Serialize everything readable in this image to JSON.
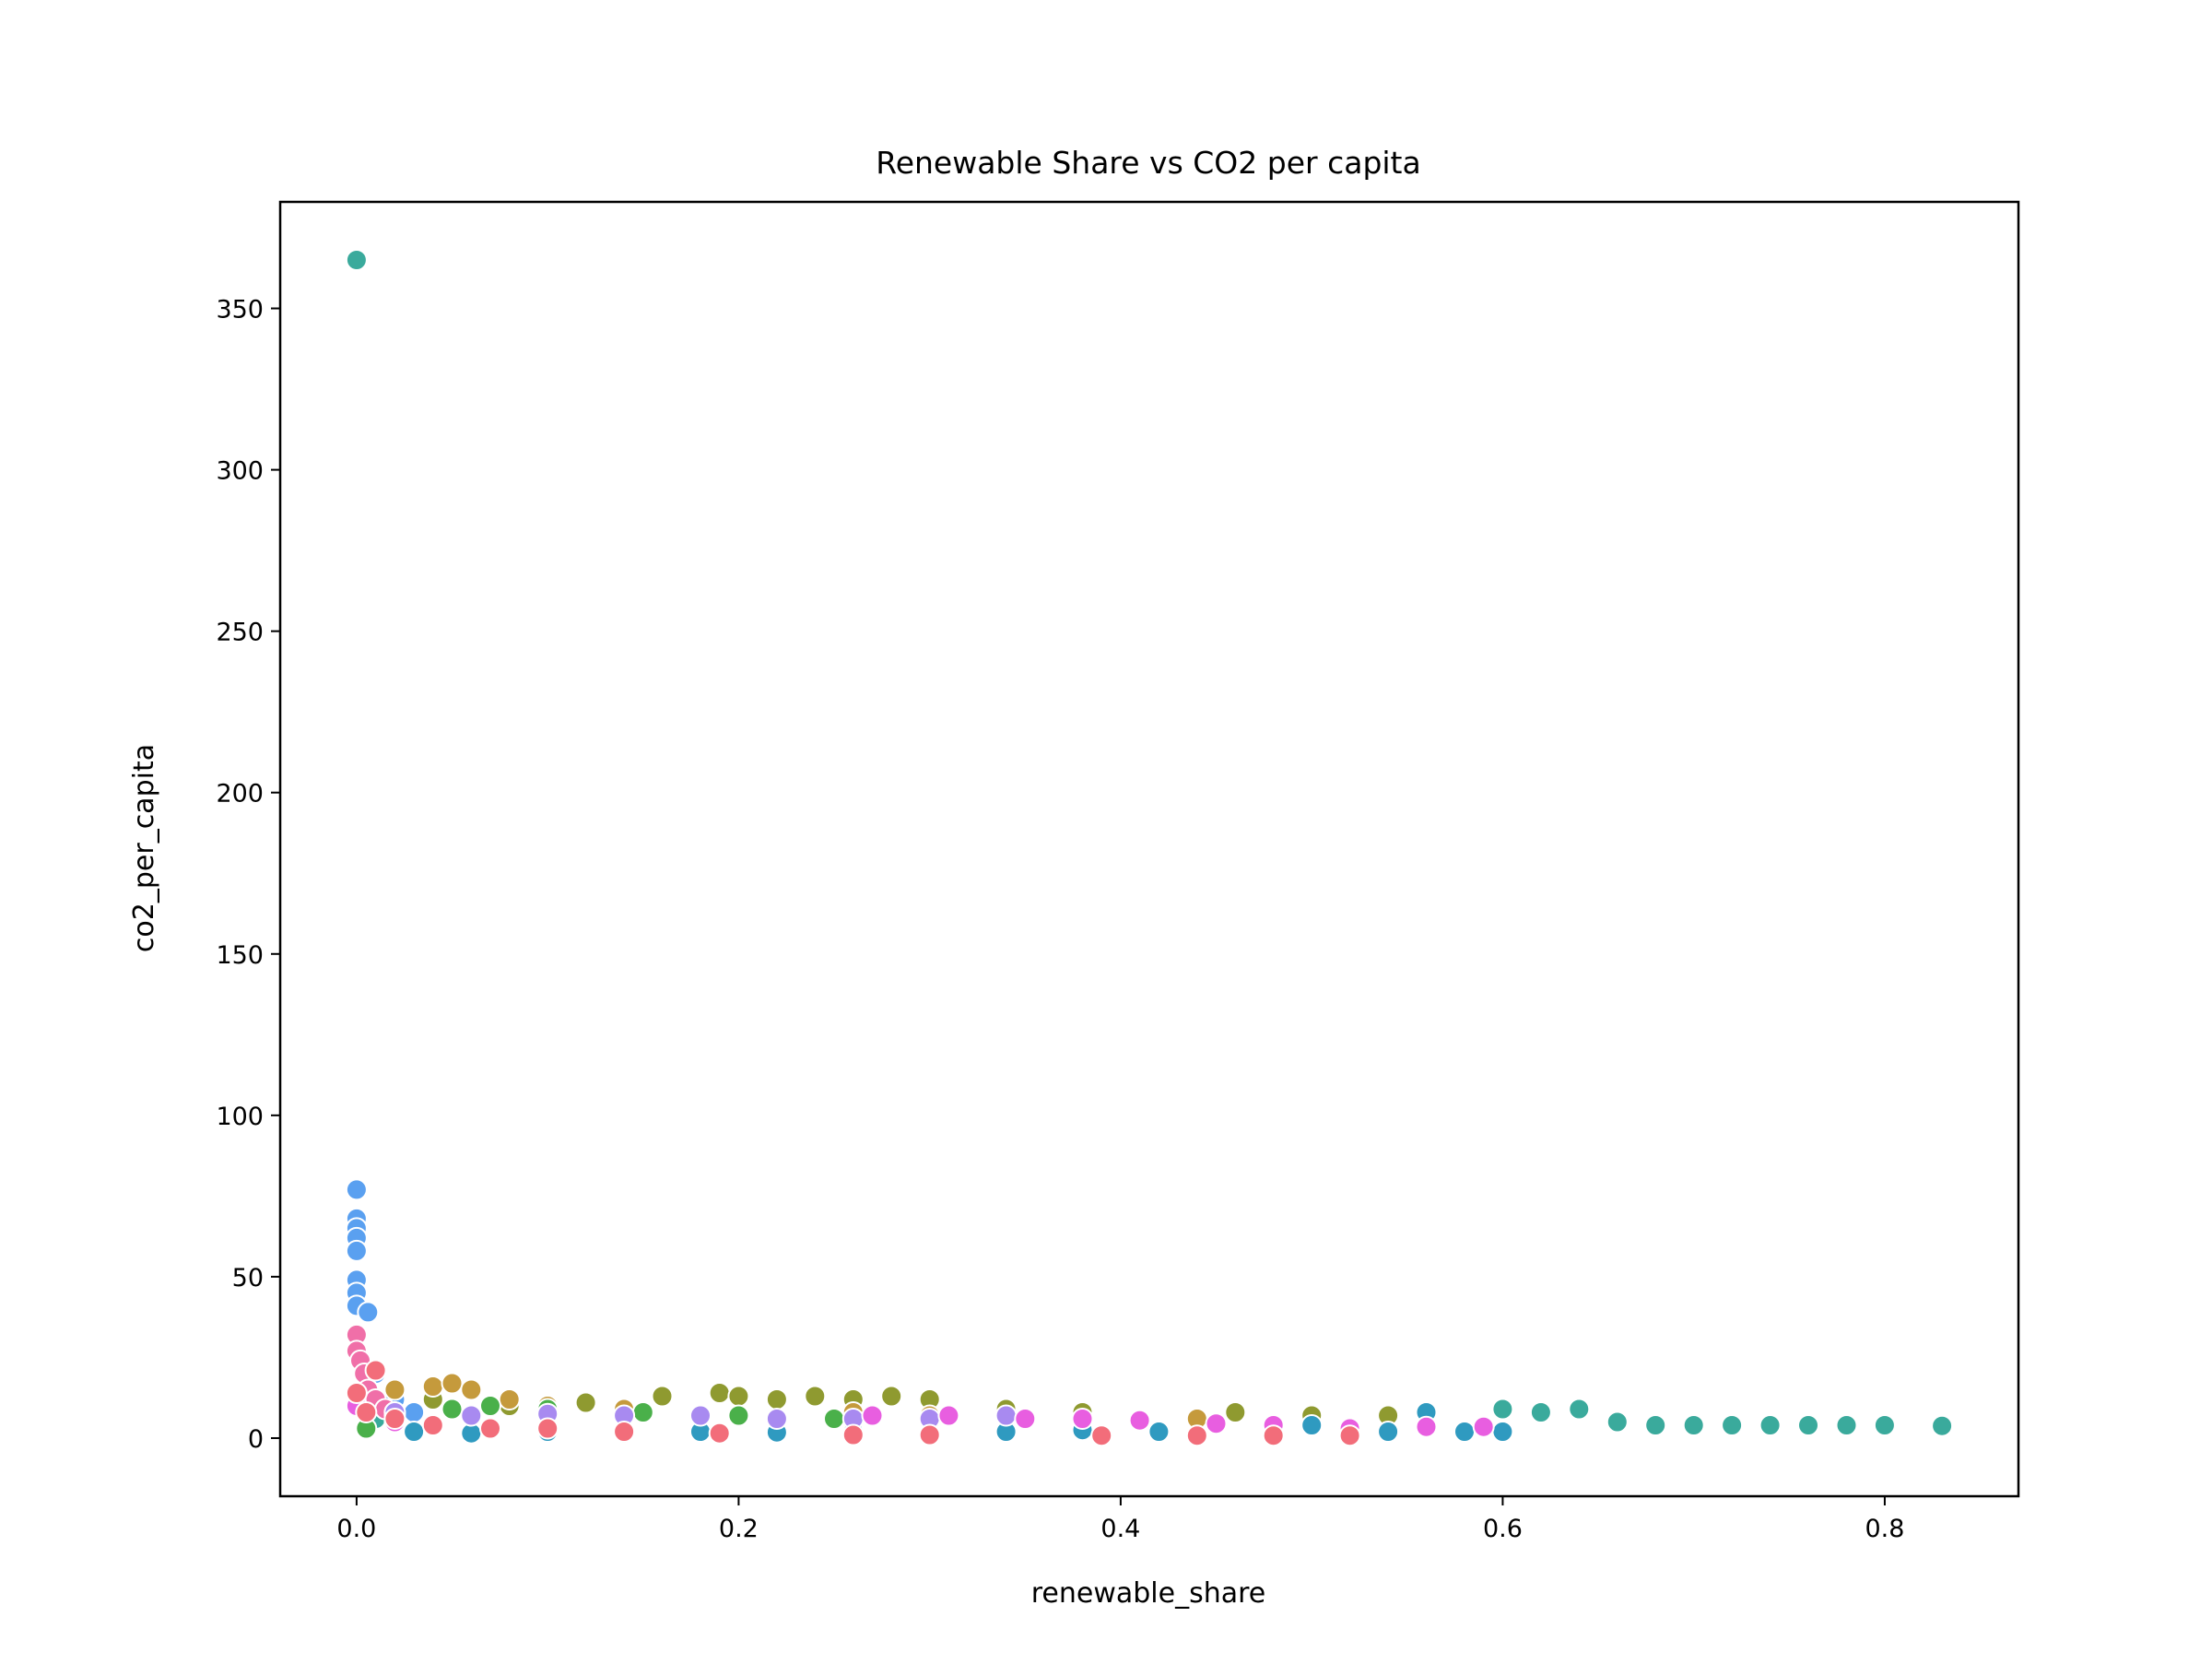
{
  "chart_data": {
    "type": "scatter",
    "title": "Renewable Share vs CO2 per capita",
    "xlabel": "renewable_share",
    "ylabel": "co2_per_capita",
    "xlim": [
      -0.04,
      0.87
    ],
    "ylim": [
      -18,
      383
    ],
    "xticks": [
      "0.0",
      "0.2",
      "0.4",
      "0.6",
      "0.8"
    ],
    "yticks": [
      "0",
      "50",
      "100",
      "150",
      "200",
      "250",
      "300",
      "350"
    ],
    "grid": false,
    "legend": "none",
    "series": [
      {
        "color": "#3aaa9c",
        "points": [
          [
            0.0,
            365
          ],
          [
            0.005,
            12
          ],
          [
            0.01,
            6
          ],
          [
            0.015,
            9
          ],
          [
            0.02,
            5
          ],
          [
            0.6,
            9
          ],
          [
            0.62,
            8
          ],
          [
            0.64,
            9
          ],
          [
            0.66,
            5
          ],
          [
            0.68,
            4
          ],
          [
            0.7,
            4
          ],
          [
            0.72,
            4
          ],
          [
            0.74,
            4
          ],
          [
            0.76,
            4
          ],
          [
            0.78,
            4
          ],
          [
            0.8,
            4
          ],
          [
            0.83,
            3.8
          ]
        ]
      },
      {
        "color": "#5aa0f0",
        "points": [
          [
            0.0,
            77
          ],
          [
            0.0,
            68
          ],
          [
            0.0,
            65
          ],
          [
            0.0,
            62
          ],
          [
            0.0,
            58
          ],
          [
            0.0,
            49
          ],
          [
            0.0,
            45
          ],
          [
            0.0,
            41
          ],
          [
            0.006,
            39
          ],
          [
            0.01,
            20
          ],
          [
            0.02,
            12
          ],
          [
            0.03,
            8
          ]
        ]
      },
      {
        "color": "#f06fa8",
        "points": [
          [
            0.0,
            32
          ],
          [
            0.0,
            27
          ],
          [
            0.002,
            24
          ],
          [
            0.004,
            20
          ],
          [
            0.006,
            15
          ],
          [
            0.01,
            12
          ],
          [
            0.015,
            9
          ],
          [
            0.02,
            7
          ]
        ]
      },
      {
        "color": "#8f9a30",
        "points": [
          [
            0.04,
            12
          ],
          [
            0.08,
            10
          ],
          [
            0.12,
            11
          ],
          [
            0.16,
            13
          ],
          [
            0.19,
            14
          ],
          [
            0.2,
            13
          ],
          [
            0.22,
            12
          ],
          [
            0.24,
            13
          ],
          [
            0.26,
            12
          ],
          [
            0.28,
            13
          ],
          [
            0.3,
            12
          ],
          [
            0.34,
            9
          ],
          [
            0.38,
            8
          ],
          [
            0.46,
            8
          ],
          [
            0.5,
            7
          ],
          [
            0.54,
            7
          ]
        ]
      },
      {
        "color": "#c59a3c",
        "points": [
          [
            0.02,
            15
          ],
          [
            0.04,
            16
          ],
          [
            0.05,
            17
          ],
          [
            0.06,
            15
          ],
          [
            0.08,
            12
          ],
          [
            0.1,
            10
          ],
          [
            0.14,
            9
          ],
          [
            0.26,
            8
          ],
          [
            0.3,
            7
          ],
          [
            0.44,
            6
          ]
        ]
      },
      {
        "color": "#4ab04a",
        "points": [
          [
            0.005,
            3
          ],
          [
            0.02,
            8
          ],
          [
            0.05,
            9
          ],
          [
            0.07,
            10
          ],
          [
            0.1,
            9
          ],
          [
            0.15,
            8
          ],
          [
            0.2,
            7
          ],
          [
            0.25,
            6
          ],
          [
            0.3,
            5
          ],
          [
            0.35,
            6
          ]
        ]
      },
      {
        "color": "#2f9ac0",
        "points": [
          [
            0.03,
            2
          ],
          [
            0.06,
            1.5
          ],
          [
            0.1,
            2
          ],
          [
            0.14,
            1.5
          ],
          [
            0.18,
            2
          ],
          [
            0.22,
            1.8
          ],
          [
            0.26,
            2
          ],
          [
            0.3,
            1.5
          ],
          [
            0.34,
            2
          ],
          [
            0.38,
            2.5
          ],
          [
            0.42,
            2
          ],
          [
            0.5,
            4
          ],
          [
            0.54,
            2
          ],
          [
            0.56,
            8
          ],
          [
            0.58,
            2
          ],
          [
            0.6,
            2
          ]
        ]
      },
      {
        "color": "#a88af0",
        "points": [
          [
            0.02,
            8
          ],
          [
            0.06,
            7
          ],
          [
            0.1,
            7.5
          ],
          [
            0.14,
            7
          ],
          [
            0.18,
            7
          ],
          [
            0.22,
            6
          ],
          [
            0.26,
            6
          ],
          [
            0.3,
            6
          ],
          [
            0.34,
            7
          ]
        ]
      },
      {
        "color": "#e85ee0",
        "points": [
          [
            0.0,
            10
          ],
          [
            0.02,
            5
          ],
          [
            0.27,
            7
          ],
          [
            0.31,
            7
          ],
          [
            0.35,
            6
          ],
          [
            0.38,
            6
          ],
          [
            0.41,
            5.5
          ],
          [
            0.45,
            4.5
          ],
          [
            0.48,
            4
          ],
          [
            0.52,
            3
          ],
          [
            0.56,
            3.5
          ],
          [
            0.59,
            3.5
          ]
        ]
      },
      {
        "color": "#f26d7a",
        "points": [
          [
            0.0,
            14
          ],
          [
            0.005,
            8
          ],
          [
            0.01,
            21
          ],
          [
            0.02,
            6
          ],
          [
            0.04,
            4
          ],
          [
            0.07,
            3
          ],
          [
            0.1,
            3
          ],
          [
            0.14,
            2
          ],
          [
            0.19,
            1.5
          ],
          [
            0.26,
            1
          ],
          [
            0.3,
            1
          ],
          [
            0.39,
            0.8
          ],
          [
            0.44,
            0.8
          ],
          [
            0.48,
            0.8
          ],
          [
            0.52,
            0.8
          ]
        ]
      }
    ]
  }
}
